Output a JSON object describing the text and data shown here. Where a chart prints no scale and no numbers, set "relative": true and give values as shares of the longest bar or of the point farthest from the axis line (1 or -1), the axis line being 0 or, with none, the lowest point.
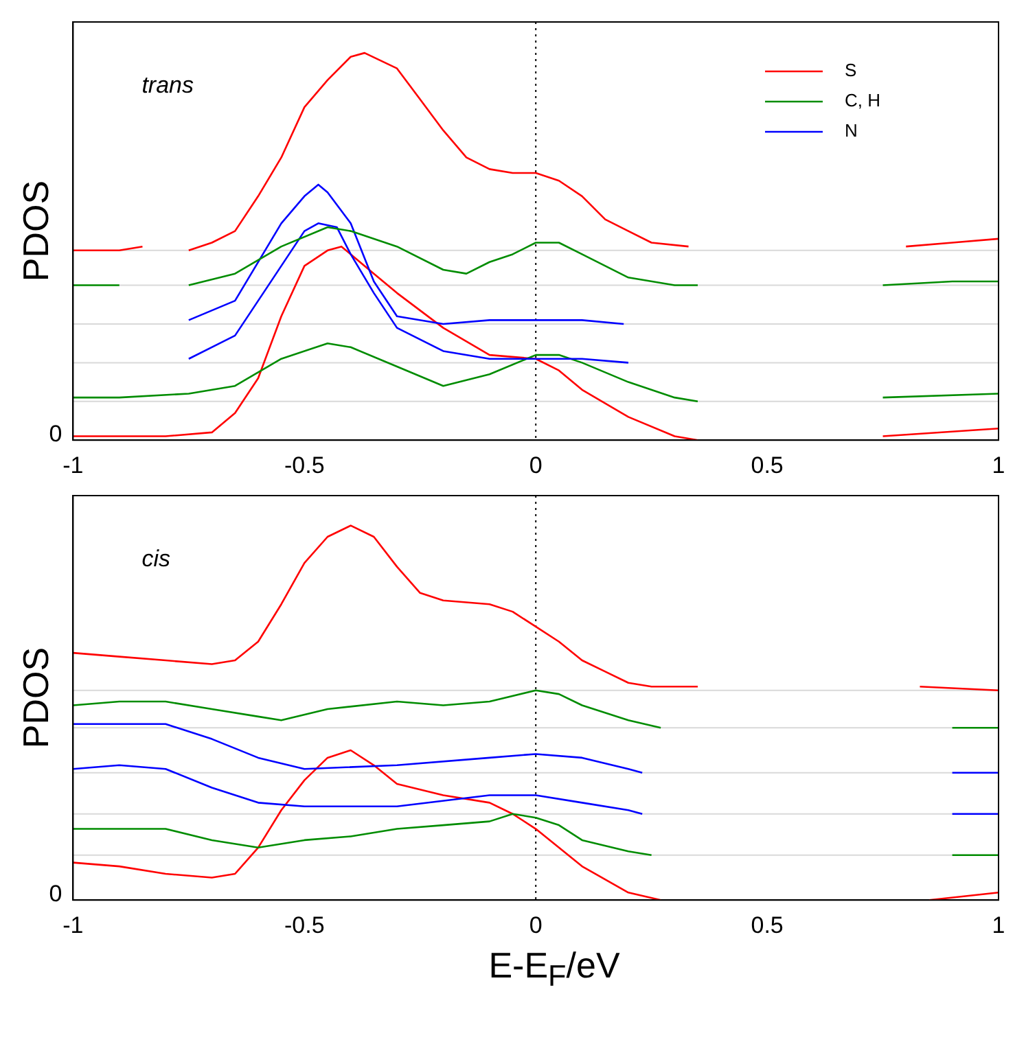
{
  "chart_data": [
    {
      "type": "line",
      "relative": true,
      "ylabel": "PDOS",
      "annotations": [
        "trans",
        "0"
      ],
      "xlim": [
        -1,
        1
      ],
      "xticks": [
        -1,
        -0.5,
        0,
        0.5,
        1
      ],
      "grid": false,
      "legend": "top right",
      "marker": "none",
      "line_style": "solid",
      "ref_lines": [
        {
          "axis": "y",
          "value": 0.49,
          "color": "#d9d9d9"
        },
        {
          "axis": "y",
          "value": 0.4,
          "color": "#d9d9d9"
        },
        {
          "axis": "y",
          "value": 0.3,
          "color": "#d9d9d9"
        },
        {
          "axis": "y",
          "value": 0.2,
          "color": "#d9d9d9"
        },
        {
          "axis": "y",
          "value": 0.1,
          "color": "#d9d9d9"
        },
        {
          "axis": "x",
          "value": 0,
          "color": "#000000",
          "line_style": "dotted"
        }
      ],
      "series": [
        {
          "name": "S",
          "color": "#ff0000",
          "x": [
            -1,
            -0.9,
            -0.85,
            -0.8,
            -0.75,
            -0.7,
            -0.65,
            -0.6,
            -0.55,
            -0.5,
            -0.45,
            -0.4,
            -0.37,
            -0.3,
            -0.25,
            -0.2,
            -0.15,
            -0.1,
            -0.05,
            0,
            0.05,
            0.1,
            0.15,
            0.2,
            0.25,
            0.33,
            0.5,
            0.8,
            0.9,
            1
          ],
          "values": [
            0.49,
            0.49,
            0.5,
            null,
            0.49,
            0.51,
            0.54,
            0.63,
            0.73,
            0.86,
            0.93,
            0.99,
            1.0,
            0.96,
            0.88,
            0.8,
            0.73,
            0.7,
            0.69,
            0.69,
            0.67,
            0.63,
            0.57,
            0.54,
            0.51,
            0.5,
            null,
            0.5,
            0.51,
            0.52
          ]
        },
        {
          "name": "C, H",
          "color": "#008c00",
          "x": [
            -1,
            -0.9,
            -0.83,
            -0.75,
            -0.65,
            -0.55,
            -0.45,
            -0.4,
            -0.3,
            -0.2,
            -0.15,
            -0.1,
            -0.05,
            0,
            0.05,
            0.1,
            0.2,
            0.3,
            0.35,
            0.55,
            0.75,
            0.9,
            1
          ],
          "values": [
            0.4,
            0.4,
            null,
            0.4,
            0.43,
            0.5,
            0.55,
            0.54,
            0.5,
            0.44,
            0.43,
            0.46,
            0.48,
            0.51,
            0.51,
            0.48,
            0.42,
            0.4,
            0.4,
            null,
            0.4,
            0.41,
            0.41
          ]
        },
        {
          "name": "N",
          "color": "#0000ff",
          "x": [
            -0.75,
            -0.65,
            -0.55,
            -0.5,
            -0.47,
            -0.45,
            -0.4,
            -0.35,
            -0.3,
            -0.2,
            -0.1,
            0,
            0.1,
            0.19
          ],
          "values": [
            0.31,
            0.36,
            0.56,
            0.63,
            0.66,
            0.64,
            0.56,
            0.41,
            0.32,
            0.3,
            0.31,
            0.31,
            0.31,
            0.3
          ]
        },
        {
          "color": "#0000ff",
          "x": [
            -0.75,
            -0.65,
            -0.55,
            -0.5,
            -0.47,
            -0.43,
            -0.4,
            -0.35,
            -0.3,
            -0.2,
            -0.1,
            0,
            0.1,
            0.2
          ],
          "values": [
            0.21,
            0.27,
            0.45,
            0.54,
            0.56,
            0.55,
            0.48,
            0.38,
            0.29,
            0.23,
            0.21,
            0.21,
            0.21,
            0.2
          ]
        },
        {
          "color": "#008c00",
          "x": [
            -1,
            -0.9,
            -0.75,
            -0.65,
            -0.55,
            -0.45,
            -0.4,
            -0.3,
            -0.2,
            -0.1,
            0,
            0.05,
            0.1,
            0.2,
            0.3,
            0.35,
            0.55,
            0.75,
            1
          ],
          "values": [
            0.11,
            0.11,
            0.12,
            0.14,
            0.21,
            0.25,
            0.24,
            0.19,
            0.14,
            0.17,
            0.22,
            0.22,
            0.2,
            0.15,
            0.11,
            0.1,
            null,
            0.11,
            0.12
          ]
        },
        {
          "color": "#ff0000",
          "x": [
            -1,
            -0.8,
            -0.7,
            -0.65,
            -0.6,
            -0.55,
            -0.5,
            -0.45,
            -0.42,
            -0.35,
            -0.3,
            -0.2,
            -0.1,
            0,
            0.05,
            0.1,
            0.2,
            0.3,
            0.35,
            0.55,
            0.75,
            1
          ],
          "values": [
            0.01,
            0.01,
            0.02,
            0.07,
            0.16,
            0.32,
            0.45,
            0.49,
            0.5,
            0.43,
            0.38,
            0.29,
            0.22,
            0.21,
            0.18,
            0.13,
            0.06,
            0.01,
            0,
            null,
            0.01,
            0.03
          ]
        }
      ]
    },
    {
      "type": "line",
      "relative": true,
      "ylabel": "PDOS",
      "xlabel": "E-E$_{F}$/eV",
      "annotations": [
        "cis",
        "0"
      ],
      "xlim": [
        -1,
        1
      ],
      "xticks": [
        -1,
        -0.5,
        0,
        0.5,
        1
      ],
      "grid": false,
      "marker": "none",
      "line_style": "solid",
      "ref_lines": [
        {
          "axis": "y",
          "value": 0.56,
          "color": "#d9d9d9"
        },
        {
          "axis": "y",
          "value": 0.46,
          "color": "#d9d9d9"
        },
        {
          "axis": "y",
          "value": 0.34,
          "color": "#d9d9d9"
        },
        {
          "axis": "y",
          "value": 0.23,
          "color": "#d9d9d9"
        },
        {
          "axis": "y",
          "value": 0.12,
          "color": "#d9d9d9"
        },
        {
          "axis": "x",
          "value": 0,
          "color": "#000000",
          "line_style": "dotted"
        }
      ],
      "series": [
        {
          "color": "#ff0000",
          "x": [
            -1,
            -0.9,
            -0.8,
            -0.7,
            -0.65,
            -0.6,
            -0.55,
            -0.5,
            -0.45,
            -0.4,
            -0.35,
            -0.3,
            -0.25,
            -0.2,
            -0.1,
            -0.05,
            0,
            0.05,
            0.1,
            0.15,
            0.2,
            0.25,
            0.35,
            0.6,
            0.83,
            1
          ],
          "values": [
            0.66,
            0.65,
            0.64,
            0.63,
            0.64,
            0.69,
            0.79,
            0.9,
            0.97,
            1.0,
            0.97,
            0.89,
            0.82,
            0.8,
            0.79,
            0.77,
            0.73,
            0.69,
            0.64,
            0.61,
            0.58,
            0.57,
            0.57,
            null,
            0.57,
            0.56
          ]
        },
        {
          "color": "#008c00",
          "x": [
            -1,
            -0.9,
            -0.8,
            -0.7,
            -0.6,
            -0.55,
            -0.45,
            -0.3,
            -0.2,
            -0.1,
            0,
            0.05,
            0.1,
            0.2,
            0.27,
            0.6,
            0.9,
            1
          ],
          "values": [
            0.52,
            0.53,
            0.53,
            0.51,
            0.49,
            0.48,
            0.51,
            0.53,
            0.52,
            0.53,
            0.56,
            0.55,
            0.52,
            0.48,
            0.46,
            null,
            0.46,
            0.46
          ]
        },
        {
          "color": "#0000ff",
          "x": [
            -1,
            -0.9,
            -0.8,
            -0.7,
            -0.6,
            -0.5,
            -0.3,
            -0.1,
            0,
            0.1,
            0.2,
            0.23,
            0.6,
            0.9,
            1
          ],
          "values": [
            0.47,
            0.47,
            0.47,
            0.43,
            0.38,
            0.35,
            0.36,
            0.38,
            0.39,
            0.38,
            0.35,
            0.34,
            null,
            0.34,
            0.34
          ]
        },
        {
          "color": "#0000ff",
          "x": [
            -1,
            -0.9,
            -0.8,
            -0.7,
            -0.6,
            -0.5,
            -0.3,
            -0.1,
            0,
            0.1,
            0.2,
            0.23,
            0.6,
            0.9,
            1
          ],
          "values": [
            0.35,
            0.36,
            0.35,
            0.3,
            0.26,
            0.25,
            0.25,
            0.28,
            0.28,
            0.26,
            0.24,
            0.23,
            null,
            0.23,
            0.23
          ]
        },
        {
          "color": "#008c00",
          "x": [
            -1,
            -0.9,
            -0.8,
            -0.7,
            -0.6,
            -0.5,
            -0.4,
            -0.3,
            -0.2,
            -0.1,
            -0.05,
            0,
            0.05,
            0.1,
            0.2,
            0.25,
            0.6,
            0.9,
            1
          ],
          "values": [
            0.19,
            0.19,
            0.19,
            0.16,
            0.14,
            0.16,
            0.17,
            0.19,
            0.2,
            0.21,
            0.23,
            0.22,
            0.2,
            0.16,
            0.13,
            0.12,
            null,
            0.12,
            0.12
          ]
        },
        {
          "color": "#ff0000",
          "x": [
            -1,
            -0.9,
            -0.8,
            -0.7,
            -0.65,
            -0.6,
            -0.55,
            -0.5,
            -0.45,
            -0.4,
            -0.35,
            -0.3,
            -0.2,
            -0.1,
            -0.05,
            0,
            0.1,
            0.2,
            0.27,
            0.6,
            0.85,
            1
          ],
          "values": [
            0.1,
            0.09,
            0.07,
            0.06,
            0.07,
            0.14,
            0.24,
            0.32,
            0.38,
            0.4,
            0.36,
            0.31,
            0.28,
            0.26,
            0.23,
            0.19,
            0.09,
            0.02,
            0,
            null,
            0,
            0.02
          ]
        }
      ]
    }
  ]
}
